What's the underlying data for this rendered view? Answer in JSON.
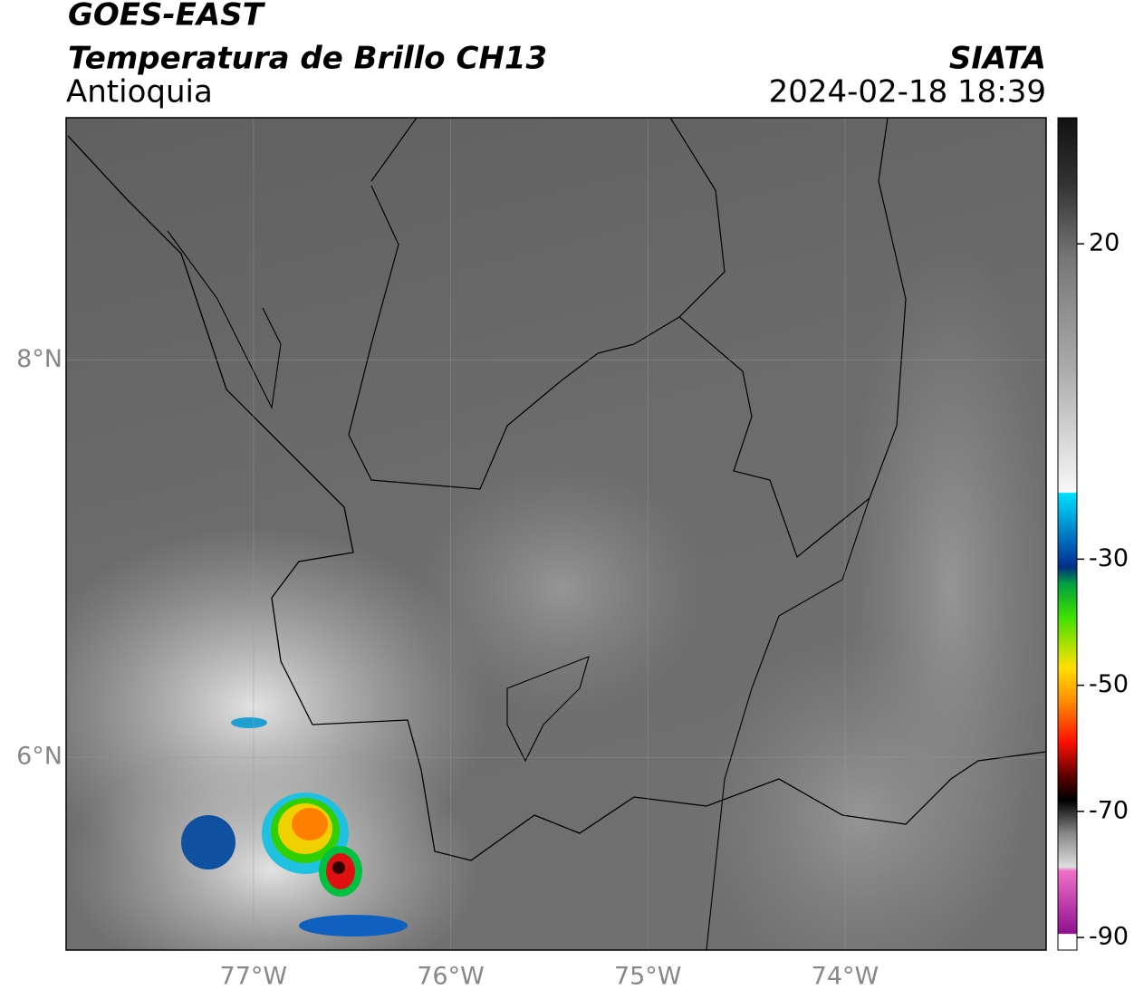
{
  "header": {
    "title": "GOES-EAST",
    "product": "Temperatura de Brillo CH13",
    "region": "Antioquia",
    "source": "SIATA",
    "datetime": "2024-02-18 18:39"
  },
  "map": {
    "xlim": [
      -77.95,
      -72.98
    ],
    "ylim": [
      5.03,
      9.22
    ],
    "xticks": [
      {
        "value": -77,
        "label": "77°W"
      },
      {
        "value": -76,
        "label": "76°W"
      },
      {
        "value": -75,
        "label": "75°W"
      },
      {
        "value": -74,
        "label": "74°W"
      }
    ],
    "yticks": [
      {
        "value": 8,
        "label": "8°N"
      },
      {
        "value": 6,
        "label": "6°N"
      }
    ],
    "grid": true
  },
  "colorbar": {
    "lim": [
      -92,
      40
    ],
    "ticks": [
      20,
      -30,
      -50,
      -70,
      -90
    ]
  }
}
